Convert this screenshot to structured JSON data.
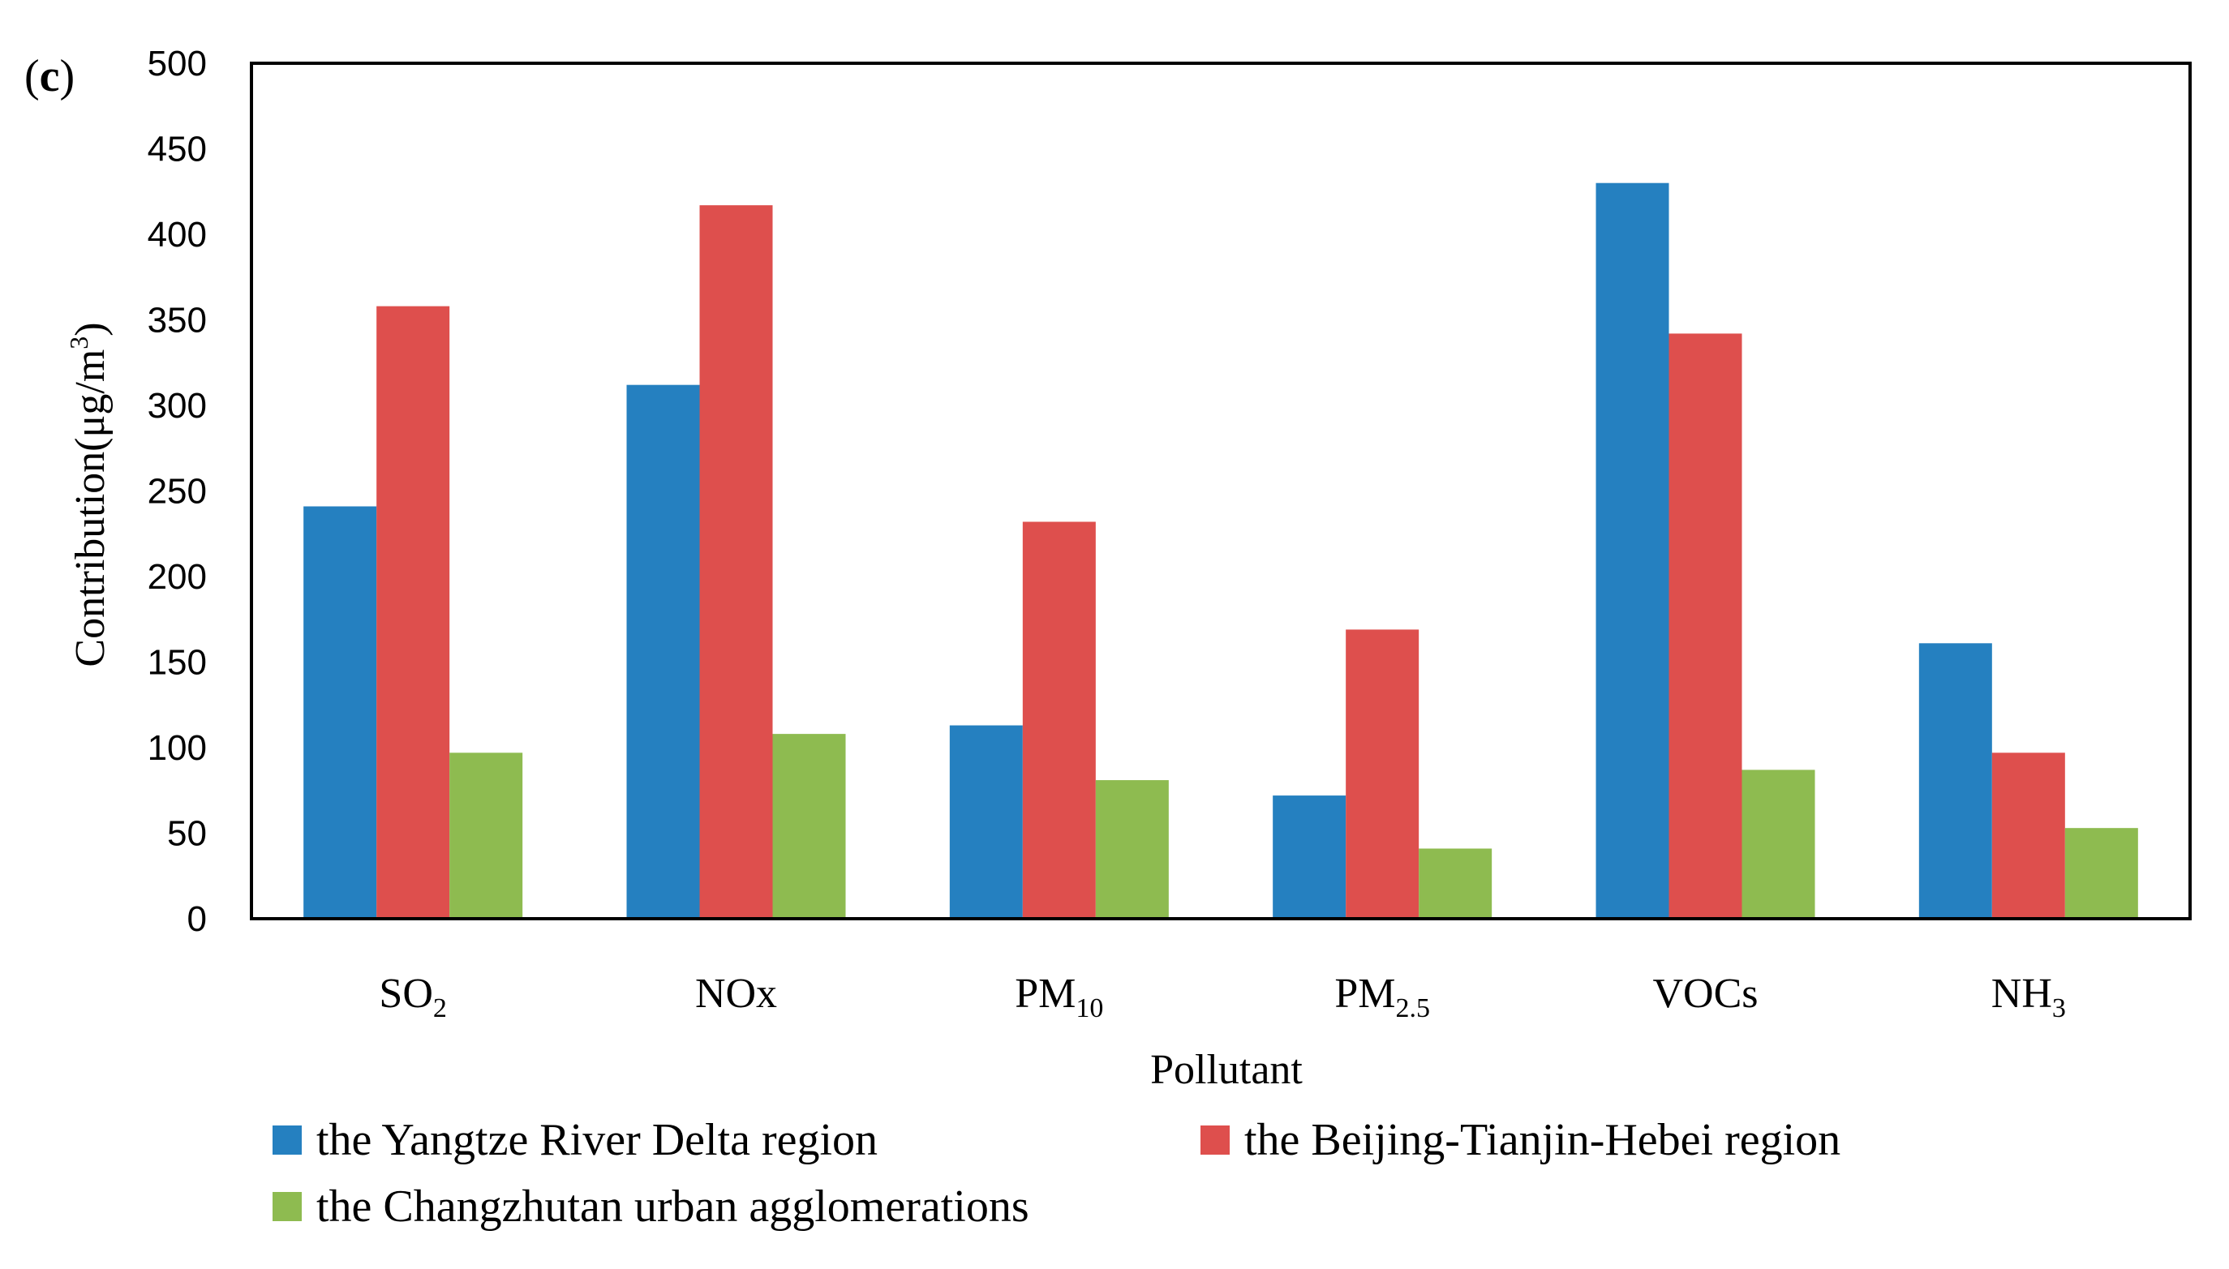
{
  "panel_label": {
    "open": "(",
    "letter": "c",
    "close": ")"
  },
  "colors": {
    "series_1": "#2580C0",
    "series_2": "#DE4F4D",
    "series_3": "#8EBB50"
  },
  "chart_data": {
    "type": "bar",
    "xlabel": "Pollutant",
    "ylabel": "Contribution(μg/m³)",
    "ylabel_parts": {
      "main": "Contribution(μg/m",
      "sup": "3",
      "close": ")"
    },
    "ylim": [
      0,
      500
    ],
    "yticks": [
      0,
      50,
      100,
      150,
      200,
      250,
      300,
      350,
      400,
      450,
      500
    ],
    "grid": false,
    "legend_position": "bottom",
    "categories": [
      {
        "base": "SO",
        "sub": "2"
      },
      {
        "base": "NOx",
        "sub": ""
      },
      {
        "base": "PM",
        "sub": "10"
      },
      {
        "base": "PM",
        "sub": "2.5"
      },
      {
        "base": "VOCs",
        "sub": ""
      },
      {
        "base": "NH",
        "sub": "3"
      }
    ],
    "series": [
      {
        "name": "the Yangtze River Delta region",
        "values": [
          241,
          312,
          113,
          72,
          430,
          161
        ]
      },
      {
        "name": "the Beijing-Tianjin-Hebei region",
        "values": [
          358,
          417,
          232,
          169,
          342,
          97
        ]
      },
      {
        "name": "the Changzhutan urban agglomerations",
        "values": [
          97,
          108,
          81,
          41,
          87,
          53
        ]
      }
    ]
  }
}
